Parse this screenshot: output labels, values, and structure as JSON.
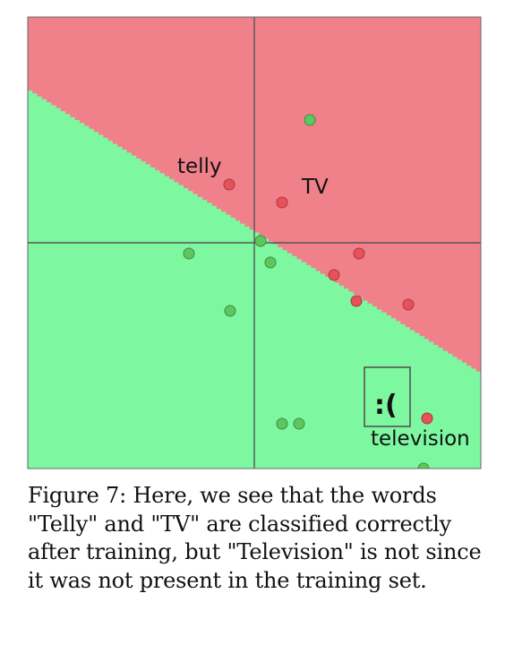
{
  "figure": {
    "colors": {
      "positive_region": "#F0808A",
      "negative_region": "#7EF7A1",
      "positive_point": "#E8505A",
      "negative_point": "#5EC65E",
      "axis": "#555555"
    },
    "labels": {
      "telly": "telly",
      "tv": "TV",
      "frown": ":(",
      "television": "television"
    },
    "points": [
      {
        "class": "negative"
      },
      {
        "class": "positive"
      },
      {
        "class": "positive"
      },
      {
        "class": "negative"
      },
      {
        "class": "negative"
      },
      {
        "class": "negative"
      },
      {
        "class": "positive"
      },
      {
        "class": "positive"
      },
      {
        "class": "positive"
      },
      {
        "class": "positive"
      },
      {
        "class": "negative"
      },
      {
        "class": "positive"
      },
      {
        "class": "negative"
      },
      {
        "class": "negative"
      },
      {
        "class": "negative"
      }
    ]
  },
  "caption": {
    "text": "Figure 7: Here, we see that the words \"Telly\" and \"TV\" are classified correctly after training, but \"Television\" is not since it was not present in the training set."
  }
}
